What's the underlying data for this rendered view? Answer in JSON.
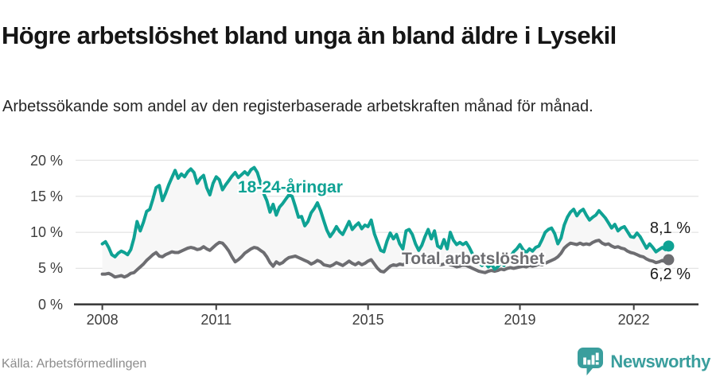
{
  "header": {
    "title": "Högre arbetslöshet bland unga än bland äldre i Lysekil",
    "subtitle": "Arbetssökande som andel av den registerbaserade arbetskraften månad för månad."
  },
  "footer": {
    "source": "Källa: Arbetsförmedlingen",
    "brand": "Newsworthy"
  },
  "colors": {
    "young": "#0fa294",
    "total": "#6d6d71",
    "fill_between": "#f7f7f7",
    "grid": "#e4e4e4",
    "axis": "#3d3d3d",
    "brand": "#3a9e9d"
  },
  "chart_data": {
    "type": "line",
    "title": "Högre arbetslöshet bland unga än bland äldre i Lysekil",
    "subtitle": "Arbetssökande som andel av den registerbaserade arbetskraften månad för månad.",
    "x_unit": "month",
    "x_range": [
      "2008-01",
      "2022-12"
    ],
    "x_tick_labels": [
      "2008",
      "2011",
      "2015",
      "2019",
      "2022"
    ],
    "y_ticks": [
      20,
      15,
      10,
      5,
      0
    ],
    "y_tick_labels": [
      "20 %",
      "15 %",
      "10 %",
      "5 %",
      "0 %"
    ],
    "ylim": [
      0,
      21.5
    ],
    "grid": "horizontal",
    "legend": "inline-labels",
    "fill_between_series": true,
    "series": [
      {
        "name": "18-24-åringar",
        "color": "#0fa294",
        "end_value": 8.1,
        "end_label": "8,1 %",
        "values": [
          8.4,
          8.7,
          7.9,
          6.9,
          6.6,
          7.1,
          7.4,
          7.2,
          6.9,
          7.6,
          9.2,
          11.5,
          10.2,
          11.4,
          12.9,
          13.2,
          14.6,
          16.2,
          16.5,
          14.4,
          15.4,
          16.6,
          17.6,
          18.6,
          17.5,
          18.1,
          17.7,
          18.4,
          18.8,
          18.3,
          16.8,
          17.5,
          17.9,
          16.2,
          15.2,
          16.8,
          17.7,
          17.3,
          15.9,
          16.6,
          17.2,
          17.8,
          18.3,
          17.6,
          18.0,
          18.4,
          18.0,
          18.7,
          19.0,
          18.3,
          16.9,
          15.4,
          14.4,
          12.8,
          13.9,
          12.4,
          13.5,
          14.0,
          14.6,
          15.2,
          15.0,
          13.6,
          12.1,
          12.2,
          10.9,
          11.5,
          12.7,
          13.3,
          14.1,
          13.0,
          11.6,
          10.3,
          9.4,
          10.0,
          10.8,
          10.1,
          9.7,
          10.6,
          11.5,
          10.4,
          10.9,
          11.3,
          10.5,
          11.0,
          10.8,
          11.7,
          9.8,
          8.6,
          7.5,
          7.3,
          8.8,
          9.9,
          9.1,
          9.7,
          8.4,
          7.7,
          10.2,
          10.4,
          9.7,
          8.4,
          7.5,
          8.2,
          9.4,
          10.4,
          9.1,
          10.2,
          8.1,
          7.8,
          9.0,
          7.7,
          10.0,
          8.9,
          8.3,
          8.6,
          8.3,
          8.6,
          7.9,
          7.0,
          6.2,
          5.8,
          5.4,
          5.8,
          5.2,
          5.6,
          4.9,
          5.2,
          5.8,
          5.4,
          6.1,
          6.6,
          7.3,
          7.7,
          8.3,
          7.6,
          7.2,
          7.7,
          7.4,
          7.9,
          8.1,
          9.0,
          10.0,
          10.4,
          10.6,
          9.8,
          8.4,
          9.2,
          11.0,
          12.1,
          12.8,
          13.2,
          12.3,
          12.9,
          13.2,
          12.4,
          11.7,
          12.1,
          12.4,
          13.0,
          12.5,
          12.0,
          11.3,
          10.6,
          11.1,
          10.2,
          10.6,
          10.8,
          10.1,
          9.4,
          9.3,
          9.9,
          9.4,
          8.6,
          7.8,
          8.4,
          7.9,
          7.3,
          7.6,
          7.9,
          7.6,
          8.1
        ]
      },
      {
        "name": "Total arbetslöshet",
        "color": "#6d6d71",
        "end_value": 6.2,
        "end_label": "6,2 %",
        "values": [
          4.2,
          4.2,
          4.3,
          4.1,
          3.8,
          3.9,
          4.0,
          3.8,
          4.0,
          4.3,
          4.4,
          4.8,
          5.2,
          5.6,
          6.1,
          6.5,
          6.9,
          7.2,
          6.7,
          6.6,
          6.9,
          7.1,
          7.3,
          7.2,
          7.2,
          7.4,
          7.6,
          7.8,
          7.9,
          7.8,
          7.6,
          7.7,
          8.0,
          7.7,
          7.5,
          7.9,
          8.3,
          8.6,
          8.5,
          8.0,
          7.4,
          6.6,
          5.9,
          6.2,
          6.6,
          7.1,
          7.4,
          7.7,
          7.9,
          7.8,
          7.5,
          7.2,
          6.6,
          5.8,
          5.3,
          5.9,
          5.6,
          5.8,
          6.2,
          6.5,
          6.6,
          6.7,
          6.5,
          6.3,
          6.1,
          5.9,
          5.6,
          5.8,
          6.1,
          5.9,
          5.5,
          5.4,
          5.3,
          5.5,
          5.8,
          5.6,
          5.4,
          5.7,
          6.0,
          5.7,
          5.5,
          5.8,
          5.5,
          5.7,
          6.0,
          6.2,
          5.6,
          5.0,
          4.6,
          4.5,
          4.9,
          5.3,
          5.5,
          5.4,
          5.6,
          5.5,
          5.7,
          5.9,
          6.1,
          5.9,
          5.7,
          5.8,
          6.0,
          5.9,
          5.7,
          5.6,
          5.7,
          5.5,
          5.6,
          5.7,
          5.5,
          5.4,
          5.2,
          5.3,
          5.5,
          5.4,
          5.2,
          5.0,
          4.8,
          4.6,
          4.5,
          4.4,
          4.6,
          4.7,
          4.6,
          4.7,
          4.9,
          4.8,
          5.0,
          5.1,
          5.0,
          5.1,
          5.2,
          5.3,
          5.2,
          5.4,
          5.3,
          5.4,
          5.6,
          5.5,
          5.7,
          5.9,
          6.1,
          6.3,
          6.6,
          7.1,
          7.8,
          8.2,
          8.5,
          8.4,
          8.3,
          8.5,
          8.3,
          8.4,
          8.3,
          8.6,
          8.8,
          8.9,
          8.5,
          8.3,
          8.4,
          8.1,
          7.9,
          8.0,
          7.8,
          7.7,
          7.4,
          7.2,
          7.1,
          6.9,
          6.7,
          6.6,
          6.3,
          6.1,
          6.0,
          5.8,
          5.9,
          6.1,
          5.9,
          6.2
        ]
      }
    ]
  }
}
